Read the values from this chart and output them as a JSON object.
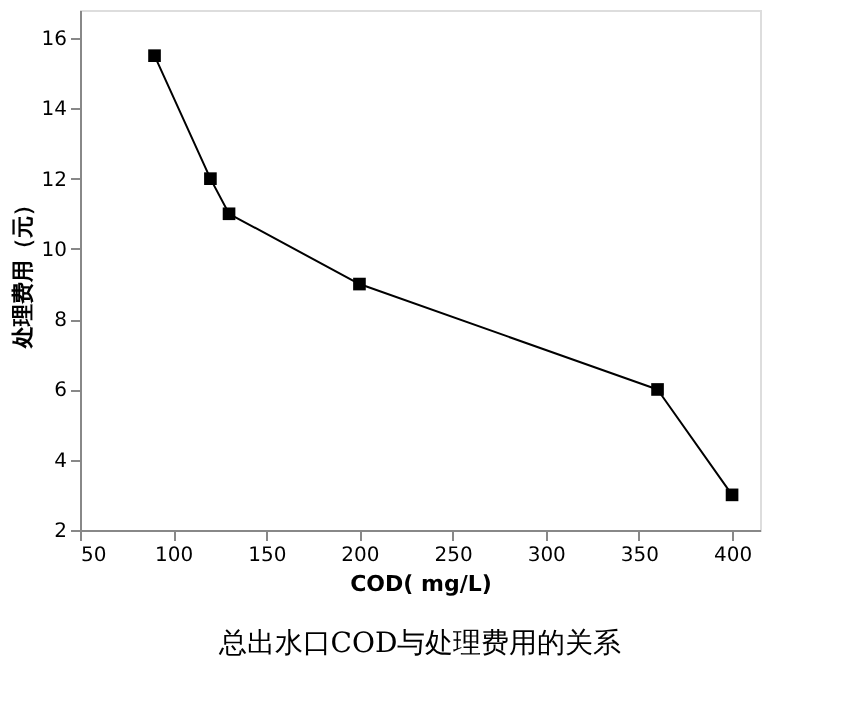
{
  "chart_data": {
    "type": "line",
    "title": "总出水口COD与处理费用的关系",
    "xlabel": "COD( mg/L)",
    "ylabel": "处理费用（元）",
    "x": [
      90,
      120,
      130,
      200,
      360,
      400
    ],
    "series": [
      {
        "color": "#000000",
        "values": [
          15.5,
          12,
          11,
          9,
          6,
          3
        ]
      }
    ],
    "xlim": [
      50,
      415
    ],
    "xticks": [
      50,
      100,
      150,
      200,
      250,
      300,
      350,
      400
    ],
    "ylim": [
      2,
      16.8
    ],
    "yticks": [
      2,
      4,
      6,
      8,
      10,
      12,
      14,
      16
    ],
    "marker": "square",
    "line_style": "solid",
    "grid": false,
    "legend": false
  }
}
